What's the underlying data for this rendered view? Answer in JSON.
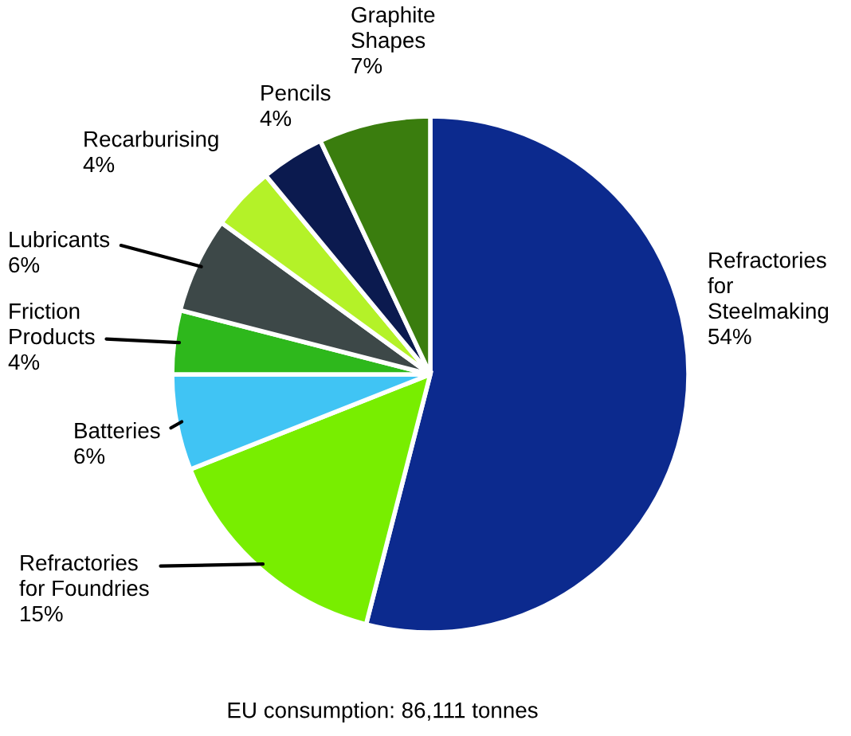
{
  "chart_data": {
    "type": "pie",
    "categories": [
      "Refractories for Steelmaking",
      "Refractories for Foundries",
      "Batteries",
      "Friction Products",
      "Lubricants",
      "Recarburising",
      "Pencils",
      "Graphite Shapes"
    ],
    "values": [
      54,
      15,
      6,
      4,
      6,
      4,
      4,
      7
    ],
    "value_labels": [
      "54%",
      "15%",
      "6%",
      "4%",
      "6%",
      "4%",
      "4%",
      "7%"
    ],
    "colors": [
      "#0c2a8e",
      "#78ee00",
      "#40c4f4",
      "#2eb81c",
      "#3d4848",
      "#b4f228",
      "#0b1a4f",
      "#3a7d0e"
    ],
    "annotations": [
      "EU consumption: 86,111 tonnes"
    ]
  }
}
